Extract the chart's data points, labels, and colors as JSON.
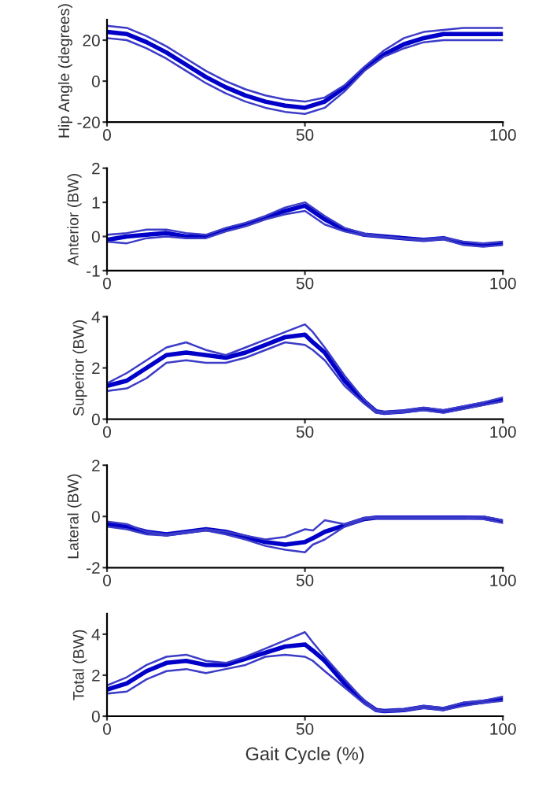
{
  "chart_data": [
    {
      "type": "line",
      "ylabel": "Hip Angle (degrees)",
      "x": [
        0,
        5,
        10,
        15,
        20,
        25,
        30,
        35,
        40,
        45,
        50,
        55,
        60,
        65,
        70,
        75,
        80,
        85,
        90,
        95,
        100
      ],
      "xlim": [
        0,
        100
      ],
      "xticks": [
        0,
        50,
        100
      ],
      "ylim": [
        -20,
        30
      ],
      "yticks": [
        -20,
        0,
        20
      ],
      "grid": false,
      "series": [
        {
          "color": "#0000c8",
          "values": [
            24,
            23,
            19,
            14,
            8,
            2,
            -3,
            -7,
            -10,
            -12,
            -13,
            -10,
            -3,
            6,
            13,
            18,
            21,
            23,
            23,
            23,
            23
          ]
        },
        {
          "color": "#3c3cc8",
          "values": [
            27,
            26,
            22,
            17,
            11,
            5,
            0,
            -4,
            -7,
            -9,
            -10,
            -8,
            -2,
            7,
            15,
            21,
            24,
            25,
            26,
            26,
            26
          ]
        },
        {
          "color": "#3c3cc8",
          "values": [
            21,
            20,
            16,
            11,
            5,
            -1,
            -6,
            -10,
            -13,
            -15,
            -16,
            -13,
            -5,
            5,
            12,
            16,
            19,
            20,
            20,
            20,
            20
          ]
        }
      ]
    },
    {
      "type": "line",
      "ylabel": "Anterior (BW)",
      "x": [
        0,
        5,
        10,
        15,
        20,
        25,
        30,
        35,
        40,
        45,
        50,
        55,
        60,
        65,
        70,
        75,
        80,
        85,
        90,
        95,
        100
      ],
      "xlim": [
        0,
        100
      ],
      "xticks": [
        0,
        50,
        100
      ],
      "ylim": [
        -1,
        2
      ],
      "yticks": [
        -1,
        0,
        1,
        2
      ],
      "grid": false,
      "series": [
        {
          "color": "#0000c8",
          "values": [
            -0.1,
            0,
            0.05,
            0.1,
            0,
            0,
            0.2,
            0.35,
            0.55,
            0.75,
            0.9,
            0.5,
            0.2,
            0.05,
            0,
            -0.05,
            -0.1,
            -0.05,
            -0.2,
            -0.25,
            -0.2
          ]
        },
        {
          "color": "#3c3cc8",
          "values": [
            0.05,
            0.1,
            0.2,
            0.2,
            0.1,
            0.05,
            0.25,
            0.4,
            0.6,
            0.85,
            1.0,
            0.6,
            0.25,
            0.08,
            0,
            -0.05,
            -0.08,
            -0.03,
            -0.15,
            -0.2,
            -0.15
          ]
        },
        {
          "color": "#3c3cc8",
          "values": [
            -0.15,
            -0.2,
            -0.05,
            0,
            -0.05,
            -0.05,
            0.15,
            0.3,
            0.5,
            0.65,
            0.75,
            0.35,
            0.15,
            0.03,
            -0.02,
            -0.07,
            -0.12,
            -0.08,
            -0.25,
            -0.3,
            -0.25
          ]
        }
      ]
    },
    {
      "type": "line",
      "ylabel": "Superior (BW)",
      "x": [
        0,
        5,
        10,
        15,
        20,
        25,
        30,
        35,
        40,
        45,
        50,
        52,
        55,
        60,
        65,
        68,
        70,
        75,
        80,
        85,
        90,
        95,
        100
      ],
      "xlim": [
        0,
        100
      ],
      "xticks": [
        0,
        50,
        100
      ],
      "ylim": [
        0,
        4
      ],
      "yticks": [
        0,
        2,
        4
      ],
      "grid": false,
      "series": [
        {
          "color": "#0000c8",
          "values": [
            1.3,
            1.5,
            2.0,
            2.5,
            2.6,
            2.5,
            2.4,
            2.6,
            2.9,
            3.2,
            3.3,
            3.0,
            2.6,
            1.5,
            0.7,
            0.3,
            0.25,
            0.3,
            0.4,
            0.3,
            0.45,
            0.6,
            0.75
          ]
        },
        {
          "color": "#3c3cc8",
          "values": [
            1.4,
            1.8,
            2.3,
            2.8,
            3.0,
            2.7,
            2.5,
            2.8,
            3.1,
            3.4,
            3.7,
            3.4,
            2.8,
            1.7,
            0.75,
            0.32,
            0.28,
            0.33,
            0.45,
            0.35,
            0.5,
            0.65,
            0.85
          ]
        },
        {
          "color": "#3c3cc8",
          "values": [
            1.1,
            1.2,
            1.6,
            2.2,
            2.3,
            2.2,
            2.2,
            2.4,
            2.7,
            3.0,
            2.9,
            2.7,
            2.3,
            1.3,
            0.6,
            0.25,
            0.22,
            0.27,
            0.35,
            0.25,
            0.4,
            0.55,
            0.7
          ]
        }
      ]
    },
    {
      "type": "line",
      "ylabel": "Lateral (BW)",
      "x": [
        0,
        5,
        10,
        15,
        20,
        25,
        30,
        35,
        40,
        45,
        50,
        52,
        55,
        60,
        65,
        68,
        70,
        75,
        80,
        85,
        90,
        95,
        100
      ],
      "xlim": [
        0,
        100
      ],
      "xticks": [
        0,
        50,
        100
      ],
      "ylim": [
        -2,
        2
      ],
      "yticks": [
        -2,
        0,
        2
      ],
      "grid": false,
      "series": [
        {
          "color": "#0000c8",
          "values": [
            -0.3,
            -0.4,
            -0.6,
            -0.7,
            -0.6,
            -0.5,
            -0.6,
            -0.8,
            -1.0,
            -1.1,
            -1.0,
            -0.85,
            -0.6,
            -0.35,
            -0.1,
            -0.05,
            -0.05,
            -0.05,
            -0.05,
            -0.05,
            -0.05,
            -0.05,
            -0.2
          ]
        },
        {
          "color": "#3c3cc8",
          "values": [
            -0.2,
            -0.3,
            -0.6,
            -0.7,
            -0.6,
            -0.5,
            -0.6,
            -0.75,
            -0.9,
            -0.8,
            -0.5,
            -0.55,
            -0.15,
            -0.3,
            -0.05,
            -0.03,
            -0.03,
            -0.03,
            -0.03,
            -0.03,
            -0.03,
            0,
            -0.15
          ]
        },
        {
          "color": "#3c3cc8",
          "values": [
            -0.4,
            -0.5,
            -0.7,
            -0.75,
            -0.65,
            -0.55,
            -0.7,
            -0.9,
            -1.15,
            -1.3,
            -1.4,
            -1.1,
            -0.9,
            -0.4,
            -0.1,
            -0.07,
            -0.07,
            -0.07,
            -0.07,
            -0.07,
            -0.07,
            -0.1,
            -0.25
          ]
        }
      ]
    },
    {
      "type": "line",
      "ylabel": "Total (BW)",
      "xlabel": "Gait Cycle (%)",
      "x": [
        0,
        5,
        10,
        15,
        20,
        25,
        30,
        35,
        40,
        45,
        50,
        52,
        55,
        60,
        65,
        68,
        70,
        75,
        80,
        85,
        90,
        95,
        100
      ],
      "xlim": [
        0,
        100
      ],
      "xticks": [
        0,
        50,
        100
      ],
      "ylim": [
        0,
        5
      ],
      "yticks": [
        0,
        2,
        4
      ],
      "grid": false,
      "series": [
        {
          "color": "#0000c8",
          "values": [
            1.3,
            1.6,
            2.2,
            2.6,
            2.7,
            2.5,
            2.5,
            2.8,
            3.1,
            3.4,
            3.5,
            3.2,
            2.7,
            1.6,
            0.7,
            0.3,
            0.25,
            0.3,
            0.45,
            0.35,
            0.6,
            0.7,
            0.85
          ]
        },
        {
          "color": "#3c3cc8",
          "values": [
            1.5,
            1.9,
            2.5,
            2.9,
            3.0,
            2.7,
            2.6,
            2.9,
            3.3,
            3.7,
            4.1,
            3.6,
            2.9,
            1.8,
            0.75,
            0.32,
            0.28,
            0.34,
            0.5,
            0.4,
            0.65,
            0.75,
            0.95
          ]
        },
        {
          "color": "#3c3cc8",
          "values": [
            1.1,
            1.2,
            1.8,
            2.2,
            2.3,
            2.1,
            2.3,
            2.5,
            2.9,
            3.0,
            2.9,
            2.7,
            2.2,
            1.4,
            0.6,
            0.25,
            0.22,
            0.27,
            0.4,
            0.3,
            0.5,
            0.65,
            0.75
          ]
        }
      ]
    }
  ]
}
